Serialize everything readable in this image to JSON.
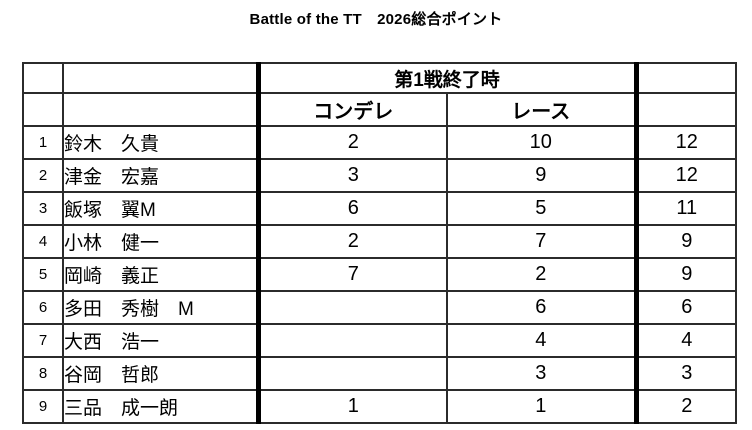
{
  "title": "Battle of the TT　2026総合ポイント",
  "table": {
    "header": {
      "round_label": "第1戦終了時",
      "condele_label": "コンデレ",
      "race_label": "レース"
    },
    "rows": [
      {
        "rank": "1",
        "name": "鈴木　久貴",
        "condele": "2",
        "race": "10",
        "total": "12"
      },
      {
        "rank": "2",
        "name": "津金　宏嘉",
        "condele": "3",
        "race": "9",
        "total": "12"
      },
      {
        "rank": "3",
        "name": "飯塚　翼M",
        "condele": "6",
        "race": "5",
        "total": "11"
      },
      {
        "rank": "4",
        "name": "小林　健一",
        "condele": "2",
        "race": "7",
        "total": "9"
      },
      {
        "rank": "5",
        "name": "岡崎　義正",
        "condele": "7",
        "race": "2",
        "total": "9"
      },
      {
        "rank": "6",
        "name": "多田　秀樹　M",
        "condele": "",
        "race": "6",
        "total": "6"
      },
      {
        "rank": "7",
        "name": "大西　浩一",
        "condele": "",
        "race": "4",
        "total": "4"
      },
      {
        "rank": "8",
        "name": "谷岡　哲郎",
        "condele": "",
        "race": "3",
        "total": "3"
      },
      {
        "rank": "9",
        "name": "三品　成一朗",
        "condele": "1",
        "race": "1",
        "total": "2"
      }
    ]
  },
  "colors": {
    "background": "#ffffff",
    "text": "#000000",
    "border_thin": "#2b2b2b",
    "border_thick": "#000000"
  }
}
